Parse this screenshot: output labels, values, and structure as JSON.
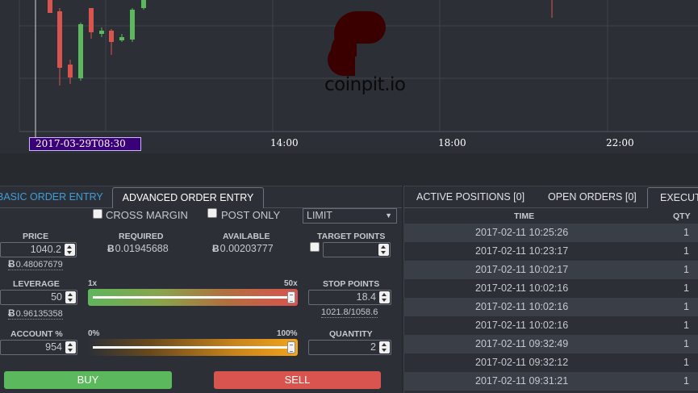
{
  "chart": {
    "x_labels": [
      "14:00",
      "18:00",
      "22:00"
    ],
    "cursor_label": "2017-03-29T08:30",
    "logo_text": "coinpit.io",
    "colors": {
      "up": "#5cb85c",
      "down": "#d9534f",
      "background": "#2c3036",
      "grid": "#3e444c",
      "cursor_label_bg": "#3a0077"
    }
  },
  "order_entry": {
    "tabs": {
      "basic": "BASIC ORDER ENTRY",
      "advanced": "ADVANCED ORDER ENTRY"
    },
    "cross_margin_label": "CROSS MARGIN",
    "post_only_label": "POST ONLY",
    "order_type": "LIMIT",
    "price": {
      "label": "PRICE",
      "value": "1040.2",
      "sub": "0.48067679"
    },
    "required": {
      "label": "REQUIRED",
      "value": "0.01945688"
    },
    "available": {
      "label": "AVAILABLE",
      "value": "0.00203777"
    },
    "target_points": {
      "label": "TARGET POINTS",
      "value": ""
    },
    "leverage": {
      "label": "LEVERAGE",
      "value": "50",
      "sub": "0.96135358",
      "min_label": "1x",
      "max_label": "50x",
      "level": 1.0
    },
    "stop_points": {
      "label": "STOP POINTS",
      "value": "18.4",
      "sub": "1021.8/1058.6"
    },
    "account_pct": {
      "label": "ACCOUNT %",
      "value": "954",
      "min_label": "0%",
      "max_label": "100%",
      "level": 1.0
    },
    "quantity": {
      "label": "QUANTITY",
      "value": "2"
    },
    "buy_label": "BUY",
    "sell_label": "SELL",
    "btc_symbol": "Ƀ"
  },
  "positions": {
    "tabs": {
      "active": "ACTIVE POSITIONS [0]",
      "open": "OPEN ORDERS [0]",
      "executed": "EXECUTED"
    },
    "headers": {
      "time": "TIME",
      "qty": "QTY"
    },
    "rows": [
      {
        "time": "2017-02-11 10:25:26",
        "qty": "1"
      },
      {
        "time": "2017-02-11 10:23:17",
        "qty": "1"
      },
      {
        "time": "2017-02-11 10:02:17",
        "qty": "1"
      },
      {
        "time": "2017-02-11 10:02:16",
        "qty": "1"
      },
      {
        "time": "2017-02-11 10:02:16",
        "qty": "1"
      },
      {
        "time": "2017-02-11 10:02:16",
        "qty": "1"
      },
      {
        "time": "2017-02-11 09:32:49",
        "qty": "1"
      },
      {
        "time": "2017-02-11 09:32:12",
        "qty": "1"
      },
      {
        "time": "2017-02-11 09:31:21",
        "qty": "1"
      }
    ]
  }
}
